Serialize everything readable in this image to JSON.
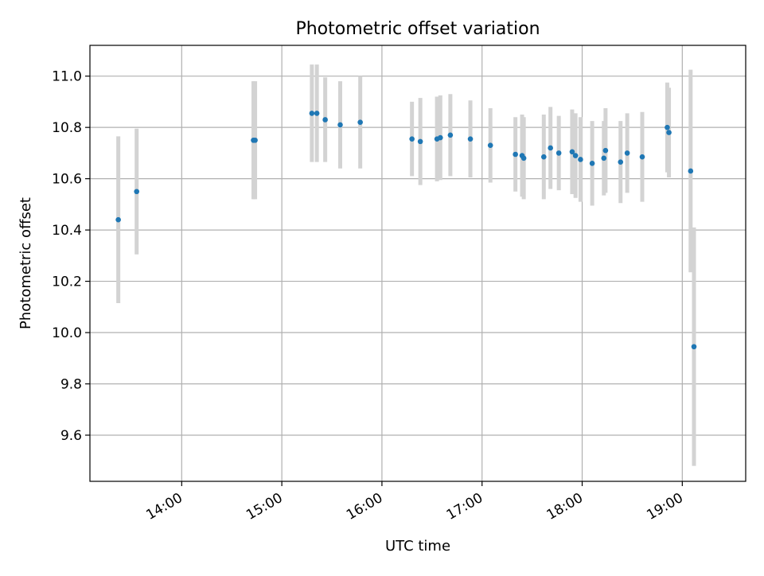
{
  "chart_data": {
    "type": "scatter",
    "title": "Photometric offset variation",
    "xlabel": "UTC time",
    "ylabel": "Photometric offset",
    "x_tick_labels": [
      "14:00",
      "15:00",
      "16:00",
      "17:00",
      "18:00",
      "19:00"
    ],
    "y_tick_labels": [
      "9.6",
      "9.8",
      "10.0",
      "10.2",
      "10.4",
      "10.6",
      "10.8",
      "11.0"
    ],
    "xlim": [
      "13:05",
      "19:38"
    ],
    "ylim": [
      9.42,
      11.12
    ],
    "grid": true,
    "point_color": "#1f77b4",
    "errorbar_color": "#d3d3d3",
    "points": [
      {
        "x": "13:22",
        "y": 10.44,
        "yerr": 0.325
      },
      {
        "x": "13:33",
        "y": 10.55,
        "yerr": 0.245
      },
      {
        "x": "14:43",
        "y": 10.75,
        "yerr": 0.23
      },
      {
        "x": "14:44",
        "y": 10.75,
        "yerr": 0.23
      },
      {
        "x": "15:18",
        "y": 10.855,
        "yerr": 0.19
      },
      {
        "x": "15:21",
        "y": 10.855,
        "yerr": 0.19
      },
      {
        "x": "15:26",
        "y": 10.83,
        "yerr": 0.165
      },
      {
        "x": "15:35",
        "y": 10.81,
        "yerr": 0.17
      },
      {
        "x": "15:47",
        "y": 10.82,
        "yerr": 0.18
      },
      {
        "x": "16:18",
        "y": 10.755,
        "yerr": 0.145
      },
      {
        "x": "16:23",
        "y": 10.745,
        "yerr": 0.17
      },
      {
        "x": "16:33",
        "y": 10.755,
        "yerr": 0.165
      },
      {
        "x": "16:35",
        "y": 10.76,
        "yerr": 0.165
      },
      {
        "x": "16:41",
        "y": 10.77,
        "yerr": 0.16
      },
      {
        "x": "16:53",
        "y": 10.755,
        "yerr": 0.15
      },
      {
        "x": "17:05",
        "y": 10.73,
        "yerr": 0.145
      },
      {
        "x": "17:20",
        "y": 10.695,
        "yerr": 0.145
      },
      {
        "x": "17:24",
        "y": 10.69,
        "yerr": 0.16
      },
      {
        "x": "17:25",
        "y": 10.68,
        "yerr": 0.16
      },
      {
        "x": "17:37",
        "y": 10.685,
        "yerr": 0.165
      },
      {
        "x": "17:41",
        "y": 10.72,
        "yerr": 0.16
      },
      {
        "x": "17:46",
        "y": 10.7,
        "yerr": 0.145
      },
      {
        "x": "17:54",
        "y": 10.705,
        "yerr": 0.165
      },
      {
        "x": "17:56",
        "y": 10.69,
        "yerr": 0.165
      },
      {
        "x": "17:59",
        "y": 10.675,
        "yerr": 0.165
      },
      {
        "x": "18:06",
        "y": 10.66,
        "yerr": 0.165
      },
      {
        "x": "18:13",
        "y": 10.68,
        "yerr": 0.145
      },
      {
        "x": "18:14",
        "y": 10.71,
        "yerr": 0.165
      },
      {
        "x": "18:23",
        "y": 10.665,
        "yerr": 0.16
      },
      {
        "x": "18:27",
        "y": 10.7,
        "yerr": 0.155
      },
      {
        "x": "18:36",
        "y": 10.685,
        "yerr": 0.175
      },
      {
        "x": "18:51",
        "y": 10.8,
        "yerr": 0.175
      },
      {
        "x": "18:52",
        "y": 10.78,
        "yerr": 0.175
      },
      {
        "x": "19:05",
        "y": 10.63,
        "yerr": 0.395
      },
      {
        "x": "19:07",
        "y": 9.945,
        "yerr": 0.465
      }
    ]
  }
}
